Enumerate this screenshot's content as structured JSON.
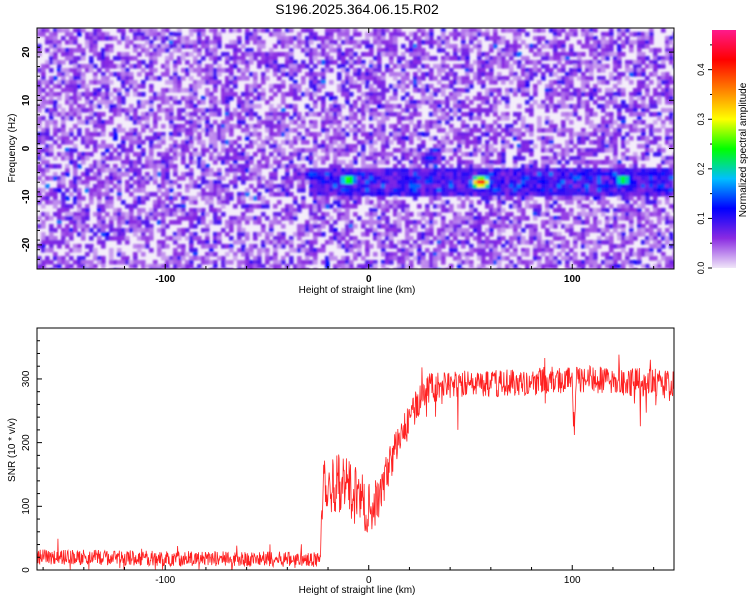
{
  "title": "S196.2025.364.06.15.R02",
  "chart_data": [
    {
      "type": "heatmap",
      "xlabel": "Height of straight line (km)",
      "ylabel": "Frequency (Hz)",
      "xlim": [
        -163,
        150
      ],
      "ylim": [
        -25,
        25
      ],
      "xticks": [
        "-100",
        "0",
        "100"
      ],
      "yticks": [
        "-20",
        "-10",
        "0",
        "10",
        "20"
      ],
      "colorbar": {
        "label": "Normalized spectral amplitude",
        "range": [
          0,
          0.48
        ],
        "ticks": [
          "0.0",
          "0.1",
          "0.2",
          "0.3",
          "0.4"
        ],
        "colormap": [
          "#f0e6f8",
          "#8a2be2",
          "#0000ff",
          "#00bfff",
          "#00ff00",
          "#ffff00",
          "#ff7f00",
          "#ff0000",
          "#ff1a8c"
        ]
      },
      "band": {
        "frequency": -7,
        "x_start": -30,
        "x_end": 150
      },
      "hotspots": [
        {
          "x": -10,
          "y": -6.5,
          "amp": 0.28
        },
        {
          "x": 55,
          "y": -7,
          "amp": 0.45
        },
        {
          "x": 125,
          "y": -6.5,
          "amp": 0.26
        },
        {
          "x": -28,
          "y": -5.5,
          "amp": 0.15
        },
        {
          "x": 30,
          "y": -2,
          "amp": 0.14
        }
      ]
    },
    {
      "type": "line",
      "xlabel": "Height of straight line (km)",
      "ylabel": "SNR (10 * v/v)",
      "xlim": [
        -163,
        150
      ],
      "ylim": [
        0,
        380
      ],
      "xticks": [
        "-100",
        "0",
        "100"
      ],
      "yticks": [
        "0",
        "100",
        "200",
        "300"
      ],
      "color": "#ff2020",
      "x": [
        -163,
        -140,
        -120,
        -100,
        -80,
        -60,
        -40,
        -30,
        -24,
        -22,
        -20,
        -15,
        -10,
        -5,
        0,
        5,
        10,
        15,
        20,
        25,
        30,
        40,
        50,
        60,
        70,
        80,
        90,
        100,
        101,
        102,
        110,
        120,
        130,
        140,
        150
      ],
      "y": [
        20,
        20,
        19,
        18,
        18,
        17,
        17,
        17,
        15,
        150,
        130,
        140,
        125,
        115,
        95,
        110,
        165,
        205,
        235,
        270,
        285,
        290,
        292,
        293,
        295,
        297,
        298,
        300,
        210,
        300,
        298,
        296,
        295,
        293,
        290
      ],
      "noise": [
        12,
        12,
        12,
        12,
        12,
        12,
        12,
        12,
        12,
        40,
        45,
        50,
        50,
        45,
        40,
        35,
        30,
        30,
        25,
        25,
        25,
        22,
        22,
        22,
        22,
        22,
        22,
        22,
        22,
        22,
        22,
        22,
        22,
        22,
        22
      ]
    }
  ]
}
